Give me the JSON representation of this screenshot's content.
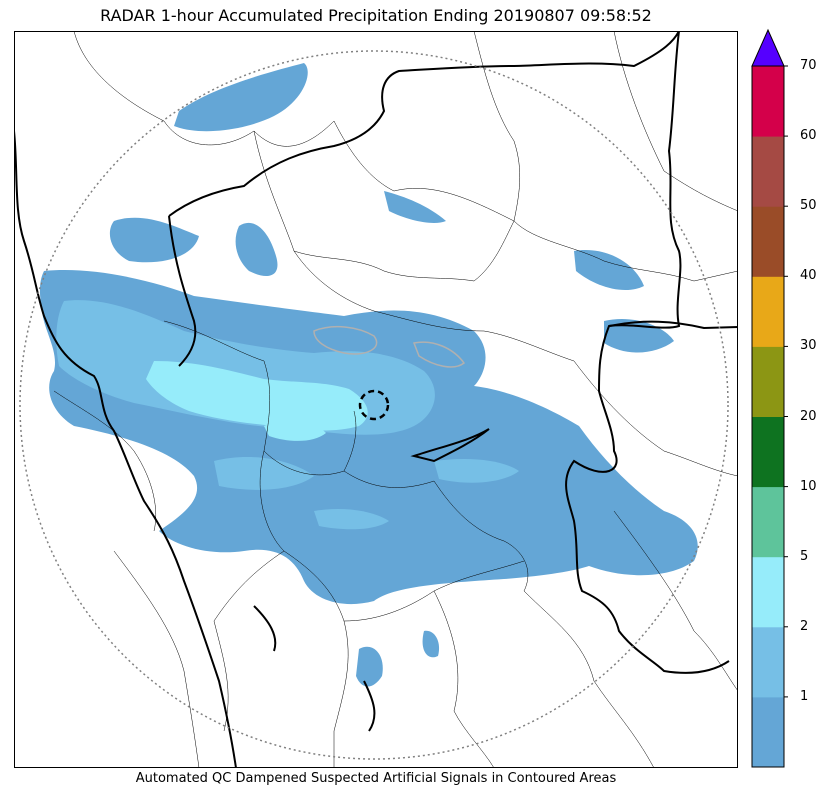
{
  "title": "RADAR 1-hour Accumulated Precipitation Ending 20190807 09:58:52",
  "caption": "Automated QC Dampened Suspected Artificial Signals in Contoured Areas",
  "colorbar": {
    "bins": [
      {
        "label": "",
        "color": "#64a6d6"
      },
      {
        "label": "1",
        "color": "#76bfe6"
      },
      {
        "label": "2",
        "color": "#96ecfa"
      },
      {
        "label": "5",
        "color": "#5ec49b"
      },
      {
        "label": "10",
        "color": "#0e7320"
      },
      {
        "label": "20",
        "color": "#8c9614"
      },
      {
        "label": "30",
        "color": "#e8a818"
      },
      {
        "label": "40",
        "color": "#9a4c28"
      },
      {
        "label": "50",
        "color": "#a54a44"
      },
      {
        "label": "60",
        "color": "#d4004a"
      }
    ],
    "top_label": "70",
    "extend_color": "#5500ff"
  },
  "colors": {
    "light_rain": "#64a6d6",
    "moderate_rain": "#76bfe6",
    "heavy_rain": "#96ecfa",
    "qc_contour": "#b0b0b0",
    "borders": "#000000",
    "range_ring": "#808080"
  },
  "icons": {
    "radar_site": "dashed-circle-marker"
  }
}
